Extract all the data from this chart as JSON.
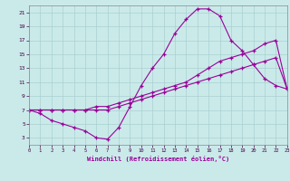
{
  "xlabel": "Windchill (Refroidissement éolien,°C)",
  "xlim_min": 0,
  "xlim_max": 23,
  "ylim_min": 2,
  "ylim_max": 22,
  "xticks": [
    0,
    1,
    2,
    3,
    4,
    5,
    6,
    7,
    8,
    9,
    10,
    11,
    12,
    13,
    14,
    15,
    16,
    17,
    18,
    19,
    20,
    21,
    22,
    23
  ],
  "yticks": [
    3,
    5,
    7,
    9,
    11,
    13,
    15,
    17,
    19,
    21
  ],
  "bg_color": "#caeaea",
  "grid_color": "#aacfcf",
  "line_color": "#990099",
  "line1_y": [
    7.0,
    6.5,
    5.5,
    5.0,
    4.5,
    4.0,
    3.0,
    2.8,
    4.5,
    7.5,
    10.5,
    13.0,
    15.0,
    18.0,
    20.0,
    21.5,
    21.5,
    20.5,
    17.0,
    15.5,
    13.5,
    11.5,
    10.5,
    10.0
  ],
  "line2_y": [
    7.0,
    7.0,
    7.0,
    7.0,
    7.0,
    7.0,
    7.0,
    7.0,
    7.5,
    8.0,
    8.5,
    9.0,
    9.5,
    10.0,
    10.5,
    11.0,
    11.5,
    12.0,
    12.5,
    13.0,
    13.5,
    14.0,
    14.5,
    10.0
  ],
  "line3_y": [
    7.0,
    7.0,
    7.0,
    7.0,
    7.0,
    7.0,
    7.5,
    7.5,
    8.0,
    8.5,
    9.0,
    9.5,
    10.0,
    10.5,
    11.0,
    12.0,
    13.0,
    14.0,
    14.5,
    15.0,
    15.5,
    16.5,
    17.0,
    10.0
  ]
}
